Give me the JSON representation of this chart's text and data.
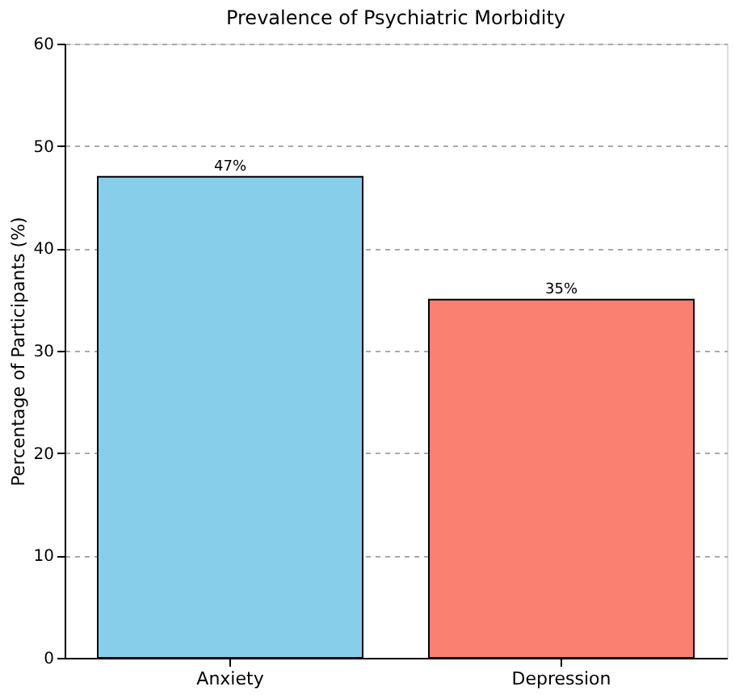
{
  "chart_data": {
    "type": "bar",
    "title": "Prevalence of Psychiatric Morbidity",
    "ylabel": "Percentage of Participants (%)",
    "categories": [
      "Anxiety",
      "Depression"
    ],
    "values": [
      47,
      35
    ],
    "colors": [
      "#87ceeb",
      "#fa8072"
    ],
    "value_labels": [
      "47%",
      "35%"
    ],
    "ylim": [
      0,
      60
    ],
    "yticks": [
      0,
      10,
      20,
      30,
      40,
      50,
      60
    ],
    "grid": "y"
  }
}
